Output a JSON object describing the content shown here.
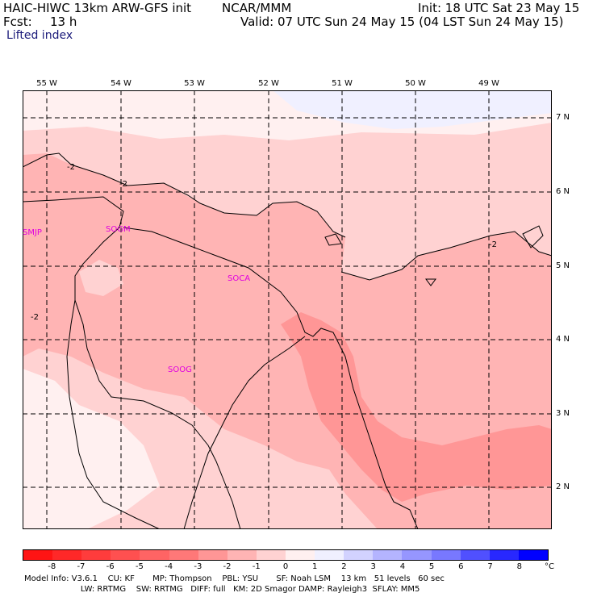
{
  "header": {
    "model": "HAIC-HIWC 13km ARW-GFS init",
    "org": "NCAR/MMM",
    "init": "Init: 18 UTC Sat 23 May 15",
    "fcst_label": "Fcst:",
    "fcst_value": "13 h",
    "valid": "Valid: 07 UTC Sun 24 May 15 (04 LST Sun 24 May 15)",
    "field": "Lifted index"
  },
  "longitudes": [
    "55 W",
    "54 W",
    "53 W",
    "52 W",
    "51 W",
    "50 W",
    "49 W"
  ],
  "latitudes": [
    "7 N",
    "6 N",
    "5 N",
    "4 N",
    "3 N",
    "2 N"
  ],
  "stations": [
    "SMJP",
    "SOGM",
    "SOCA",
    "SOOG"
  ],
  "contour_labels": [
    "-2",
    "-2",
    "-2",
    "-2"
  ],
  "colorbar": {
    "labels": [
      "-8",
      "-7",
      "-6",
      "-5",
      "-4",
      "-3",
      "-2",
      "-1",
      "0",
      "1",
      "2",
      "3",
      "4",
      "5",
      "6",
      "7",
      "8"
    ],
    "unit": "°C",
    "colors": [
      "#ff1414",
      "#ff2828",
      "#ff3c3c",
      "#ff5050",
      "#ff6464",
      "#ff7878",
      "#ff9696",
      "#ffb4b4",
      "#ffd2d2",
      "#fff0f0",
      "#f0f0ff",
      "#d2d2ff",
      "#b4b4ff",
      "#9696ff",
      "#7878ff",
      "#5050ff",
      "#2828ff",
      "#0000ff"
    ]
  },
  "footer": {
    "line1": "Model Info: V3.6.1    CU: KF       MP: Thompson    PBL: YSU       SF: Noah LSM    13 km   51 levels   60 sec",
    "line2": "                      LW: RRTMG    SW: RRTMG   DIFF: full   KM: 2D Smagor DAMP: Rayleigh3  SFLAY: MM5"
  }
}
